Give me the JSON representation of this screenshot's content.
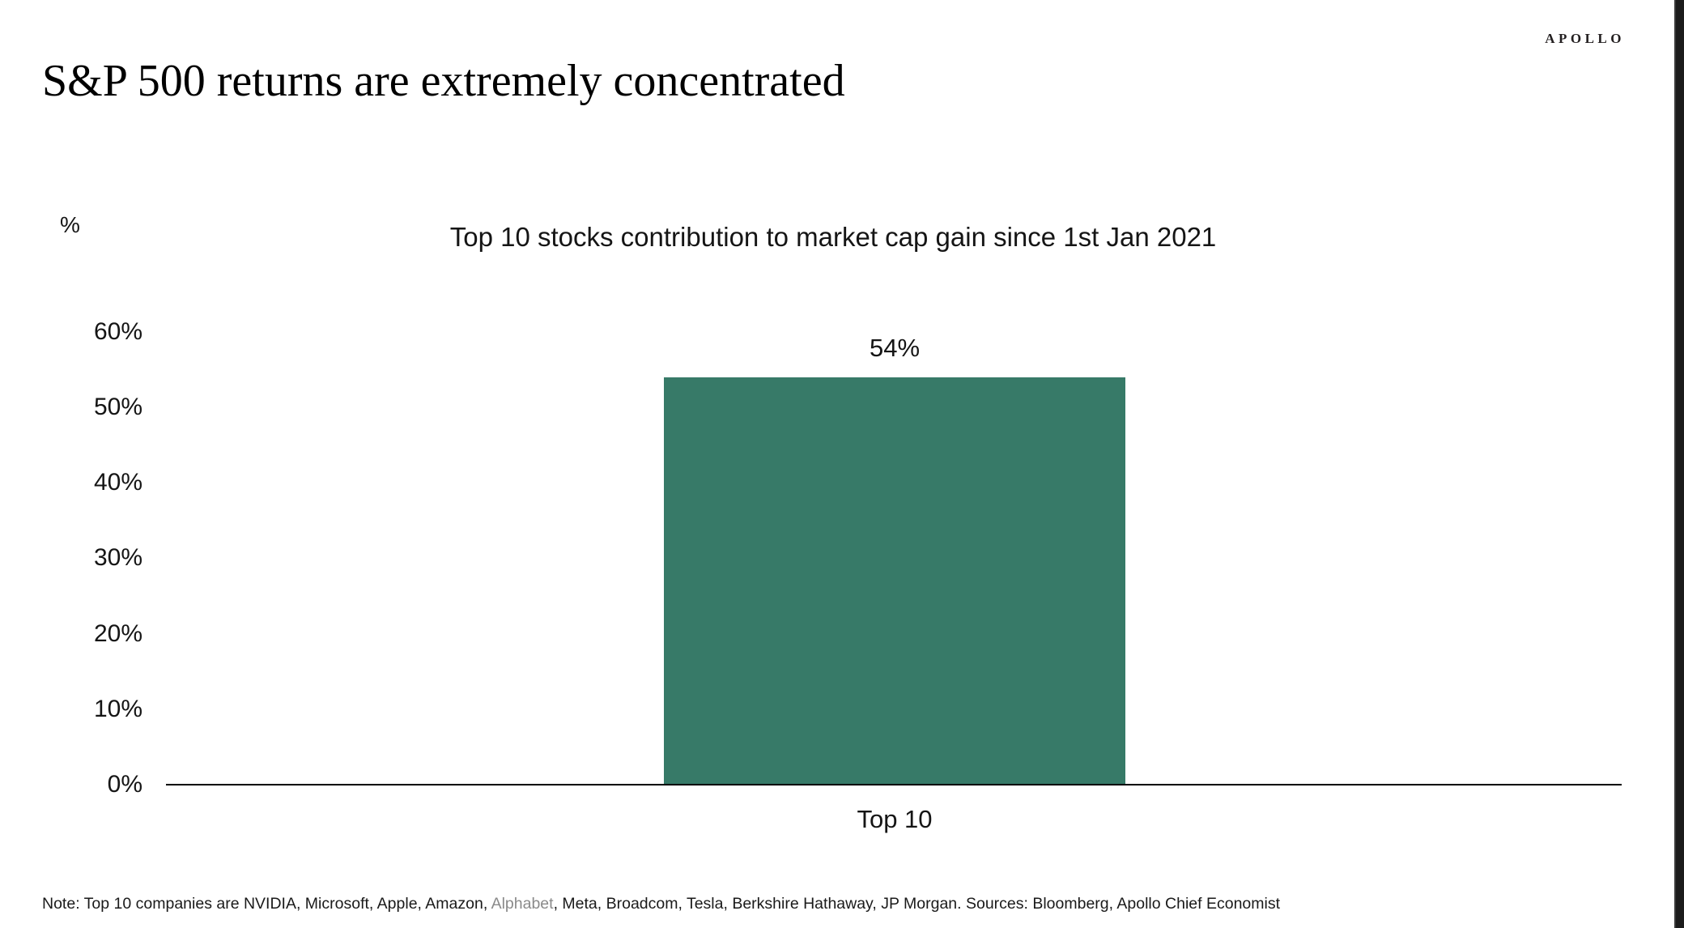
{
  "page": {
    "title": "S&P 500 returns are extremely concentrated",
    "logo": "APOLLO"
  },
  "chart_data": {
    "type": "bar",
    "title": "Top 10 stocks contribution to market cap gain since 1st Jan 2021",
    "ylabel": "%",
    "categories": [
      "Top 10"
    ],
    "values": [
      54
    ],
    "bar_labels": [
      "54%"
    ],
    "ylim": [
      0,
      60
    ],
    "ytick_labels": [
      "60%",
      "50%",
      "40%",
      "30%",
      "20%",
      "10%",
      "0%"
    ],
    "bar_color": "#377A68",
    "grid": false,
    "legend": false
  },
  "footnote": {
    "before": "Note: Top 10 companies are NVIDIA, Microsoft, Apple, Amazon, ",
    "highlight": "Alphabet",
    "after": ", Meta, Broadcom, Tesla, Berkshire Hathaway, JP Morgan. Sources: Bloomberg, Apollo Chief Economist"
  }
}
